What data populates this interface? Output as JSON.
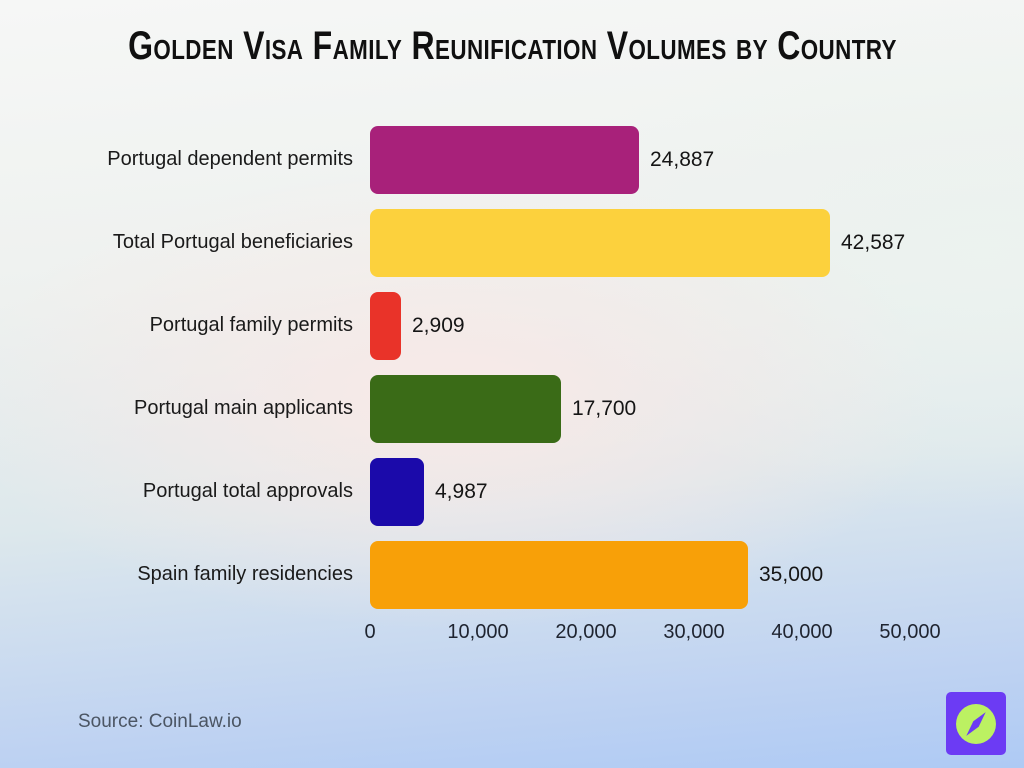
{
  "title": "Golden Visa Family Reunification Volumes by Country",
  "chart_data": {
    "type": "bar",
    "orientation": "horizontal",
    "title": "Golden Visa Family Reunification Volumes by Country",
    "categories": [
      "Portugal dependent permits",
      "Total Portugal beneficiaries",
      "Portugal family permits",
      "Portugal main applicants",
      "Portugal total approvals",
      "Spain family residencies"
    ],
    "values": [
      24887,
      42587,
      2909,
      17700,
      4987,
      35000
    ],
    "value_labels": [
      "24,887",
      "42,587",
      "2,909",
      "17,700",
      "4,987",
      "35,000"
    ],
    "bar_colors": [
      "#A8217A",
      "#FCD13D",
      "#E93329",
      "#3A6B17",
      "#1B0AAA",
      "#F8A008"
    ],
    "xlabel": "",
    "ylabel": "",
    "xlim": [
      0,
      50000
    ],
    "x_ticks": [
      0,
      10000,
      20000,
      30000,
      40000,
      50000
    ],
    "x_tick_labels": [
      "0",
      "10,000",
      "20,000",
      "30,000",
      "40,000",
      "50,000"
    ],
    "grid": false,
    "legend": false
  },
  "footer": {
    "source": "Source: CoinLaw.io"
  },
  "logo": {
    "icon": "compass-icon",
    "bg_color": "#6C3BF4",
    "circle_color": "#BCF162",
    "needle_color": "#6C3BF4"
  }
}
